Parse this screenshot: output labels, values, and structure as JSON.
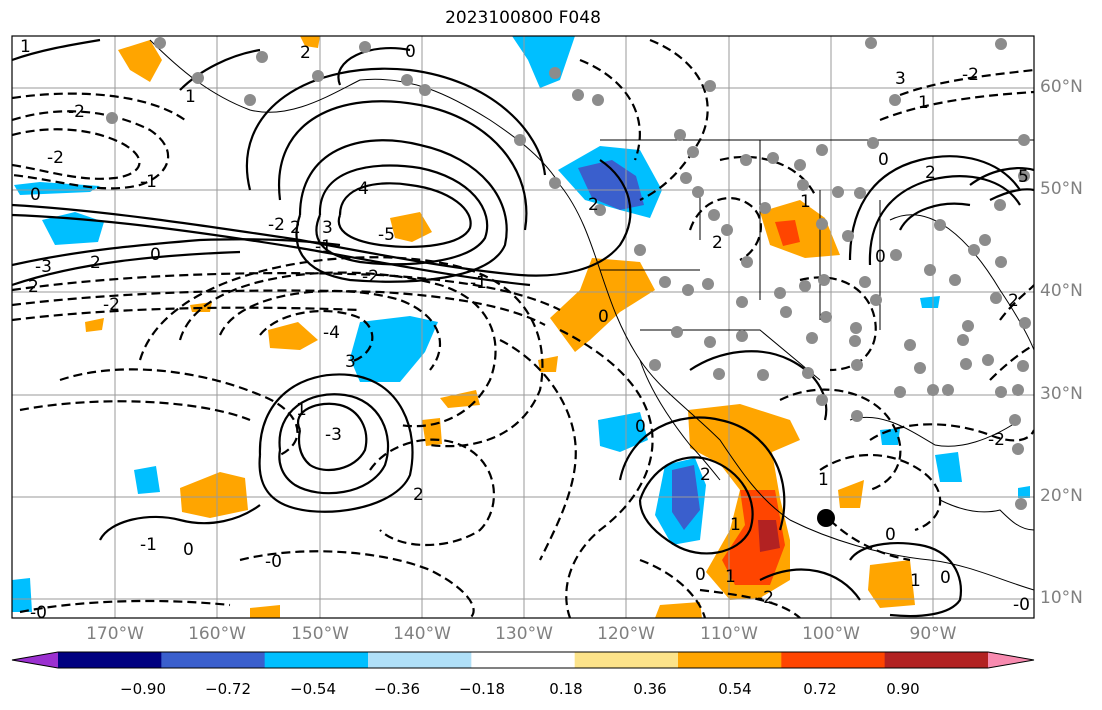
{
  "title": "2023100800 F048",
  "lat_labels": [
    "60°N",
    "50°N",
    "40°N",
    "30°N",
    "20°N",
    "10°N"
  ],
  "lon_labels": [
    "170°W",
    "160°W",
    "150°W",
    "140°W",
    "130°W",
    "120°W",
    "110°W",
    "100°W",
    "90°W"
  ],
  "colorbar": {
    "ticks": [
      "−0.90",
      "−0.72",
      "−0.54",
      "−0.36",
      "−0.18",
      "0.18",
      "0.36",
      "0.54",
      "0.72",
      "0.90"
    ],
    "colors": [
      "#9b30d0",
      "#000080",
      "#3a5fcd",
      "#00bfff",
      "#b0e0f8",
      "#ffffff",
      "#fce38a",
      "#ffa500",
      "#ff4500",
      "#b22222",
      "#f88bb0"
    ]
  },
  "contour_labels": {
    "nw_1": "1",
    "nw_2": "2",
    "nw_0": "0",
    "left_2a": "-2",
    "left_1": "-1",
    "left_0": "0",
    "left_3": "-3",
    "left_2b": "2",
    "mid_4": "4",
    "mid_5": "-5",
    "mid_3": "3",
    "mid_2": "-2",
    "mid_2b": "2",
    "mid_1": "-1",
    "mid_0": "0",
    "cen_4": "-4",
    "cen_3": "3",
    "cen_2": "-2",
    "cen_1": "1",
    "cen_0": "0",
    "low_3": "-3",
    "low_2": "2",
    "low_1": "-1",
    "low_0": "0",
    "low_1b": "1",
    "bot_0": "0",
    "bot_1": "1",
    "bot_2": "-2",
    "bot_0b": "0",
    "bot_0c": "-0",
    "e_3": "3",
    "e_2": "-2",
    "e_1": "1",
    "e_0": "0",
    "e_5": "5",
    "e_2b": "2",
    "e_2c": "-2",
    "se_1": "1",
    "se_0": "0",
    "se_0b": "-0",
    "ca_0": "0",
    "ca_2": "2",
    "ca_1": "1"
  }
}
